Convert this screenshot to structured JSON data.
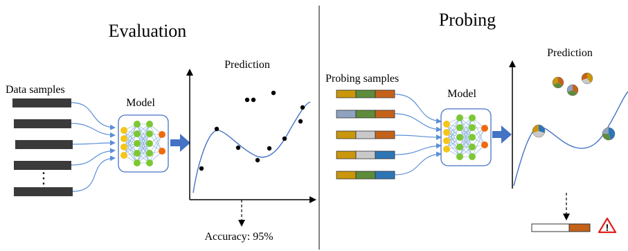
{
  "left_panel": {
    "title": "Evaluation",
    "input_label": "Data samples",
    "ellipsis": "⋮",
    "model_label": "Model",
    "chart_title": "Prediction",
    "result_text": "Accuracy:  95%"
  },
  "right_panel": {
    "title": "Probing",
    "input_label": "Probing  samples",
    "model_label": "Model",
    "chart_title": "Prediction",
    "warning_icon": "warning-triangle-icon"
  },
  "colors": {
    "sample_bar": "#3a3a3a",
    "connector": "#5b8fd6",
    "arrow": "#4472c4",
    "node_input": "#f5c518",
    "node_hidden": "#7cc832",
    "node_output": "#f06b0c",
    "seg_gold": "#c9960c",
    "seg_green": "#5e8c3a",
    "seg_orange": "#c4621a",
    "seg_grayblue": "#8fa2bf",
    "seg_lightgray": "#c9c9c9",
    "seg_blue": "#2e75b6",
    "warning": "#e0201b"
  }
}
